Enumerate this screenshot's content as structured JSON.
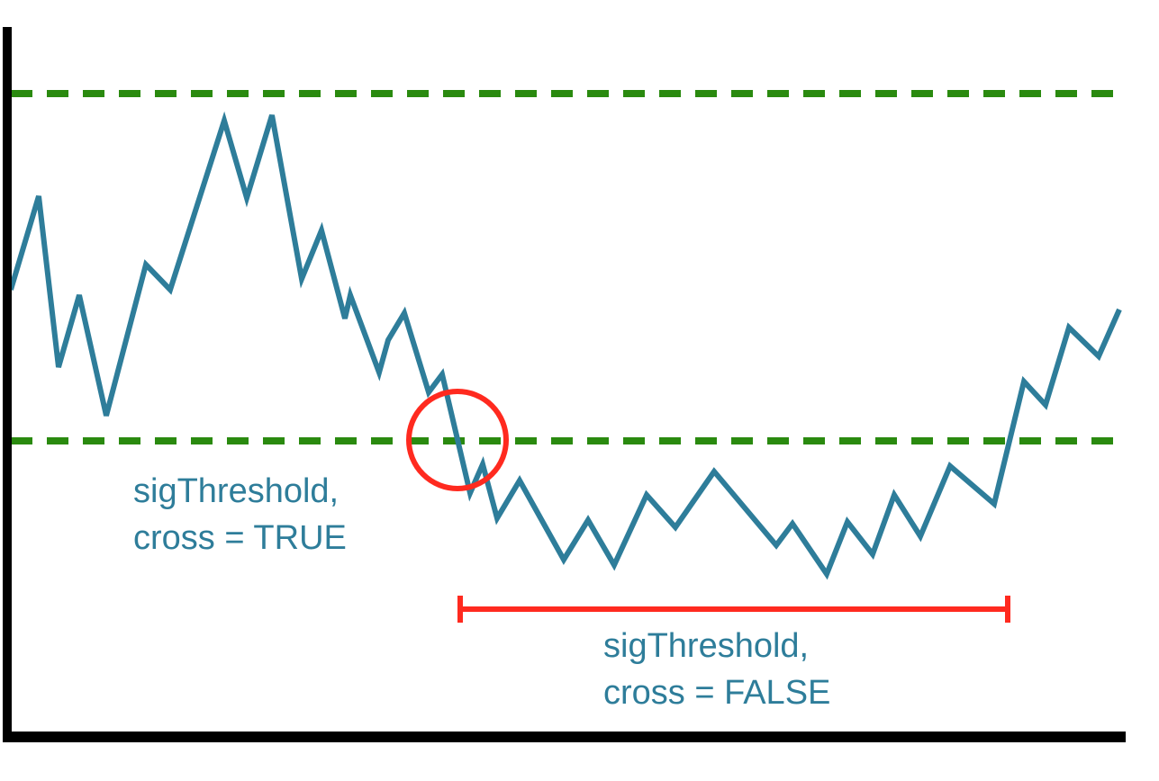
{
  "colors": {
    "background": "#ffffff",
    "axis": "#000000",
    "signal_line": "#2e7d9a",
    "threshold_line": "#2a8a0f",
    "highlight": "#ff2a1f",
    "label_text": "#2e7d9a"
  },
  "thresholds": {
    "upper_style": "dashed",
    "lower_style": "dashed"
  },
  "signal": {
    "style": "solid zigzag line"
  },
  "annotations": {
    "true_label": {
      "line1": "sigThreshold,",
      "line2": "cross = TRUE"
    },
    "false_label": {
      "line1": "sigThreshold,",
      "line2": "cross = FALSE"
    }
  },
  "highlights": {
    "crossing_marker": "circle",
    "false_range_marker": "bracket"
  }
}
